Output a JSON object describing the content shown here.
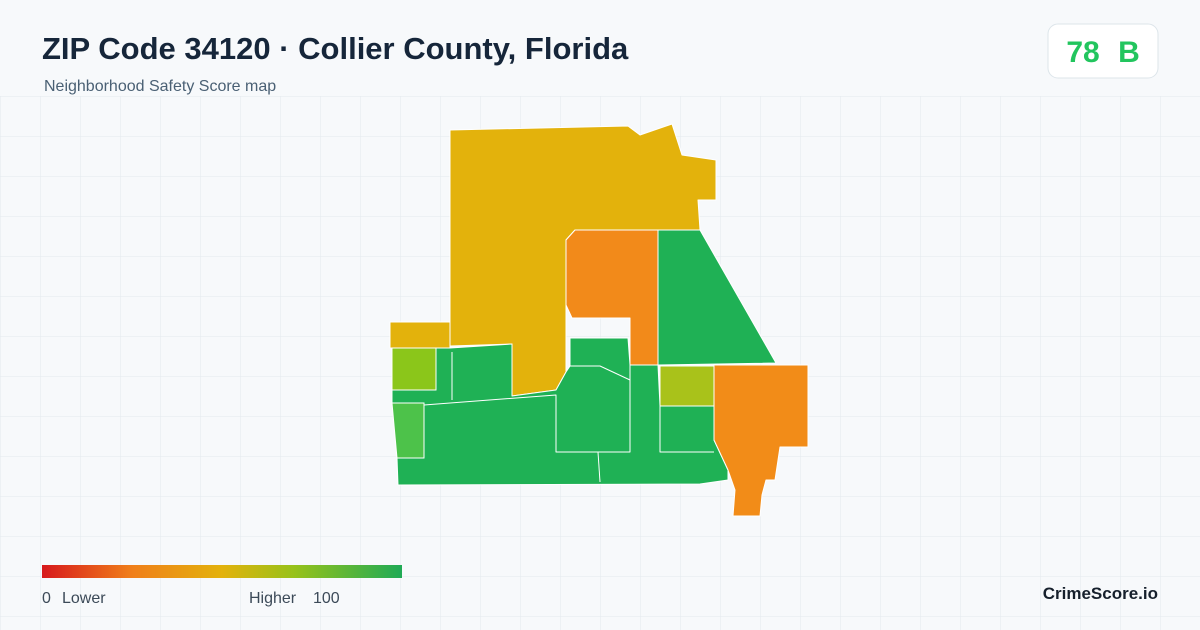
{
  "header": {
    "title": "ZIP Code 34120 · Collier County, Florida",
    "subtitle": "Neighborhood Safety Score map"
  },
  "badge": {
    "score": 78,
    "grade": "B"
  },
  "legend": {
    "min": 0,
    "min_label": "Lower",
    "max_label": "Higher",
    "max": 100
  },
  "brand": "CrimeScore.io"
}
